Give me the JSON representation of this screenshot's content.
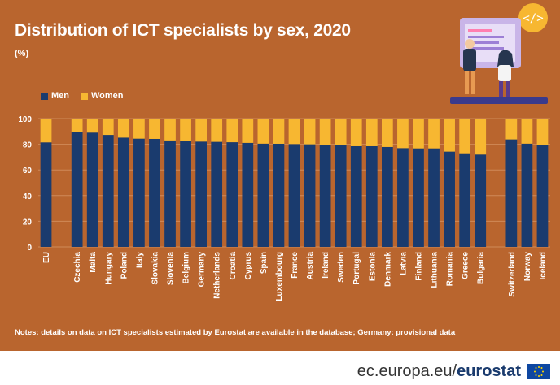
{
  "header": {
    "title": "Distribution of ICT specialists by sex, 2020",
    "unit": "(%)"
  },
  "legend": {
    "men": "Men",
    "women": "Women"
  },
  "notes": "Notes: details on data on ICT specialists estimated by Eurostat are available in the database; Germany: provisional data",
  "footer": {
    "site": "ec.europa.eu/",
    "brand": "eurostat"
  },
  "colors": {
    "men": "#1a3b6e",
    "women": "#f7b731",
    "background": "#b9652e"
  },
  "chart_data": {
    "type": "bar",
    "stacked": true,
    "categories": [
      "EU",
      "Czechia",
      "Malta",
      "Hungary",
      "Poland",
      "Italy",
      "Slovakia",
      "Slovenia",
      "Belgium",
      "Germany",
      "Netherlands",
      "Croatia",
      "Cyprus",
      "Spain",
      "Luxembourg",
      "France",
      "Austria",
      "Ireland",
      "Sweden",
      "Portugal",
      "Estonia",
      "Denmark",
      "Latvia",
      "Finland",
      "Lithuania",
      "Romania",
      "Greece",
      "Bulgaria",
      "Switzerland",
      "Norway",
      "Iceland"
    ],
    "groups": [
      1,
      27,
      3
    ],
    "series": [
      {
        "name": "Men",
        "values": [
          81.5,
          89.6,
          89.1,
          87.3,
          85.2,
          84.4,
          84.2,
          83.0,
          82.8,
          82.1,
          81.9,
          81.6,
          81.1,
          80.5,
          80.4,
          80.2,
          80.0,
          79.5,
          79.2,
          78.5,
          78.5,
          77.9,
          77.0,
          76.8,
          76.8,
          74.3,
          73.0,
          72.0,
          83.8,
          80.5,
          79.5
        ]
      },
      {
        "name": "Women",
        "values": [
          18.5,
          10.4,
          10.9,
          12.7,
          14.8,
          15.6,
          15.8,
          17.0,
          17.2,
          17.9,
          18.1,
          18.4,
          18.9,
          19.5,
          19.6,
          19.8,
          20.0,
          20.5,
          20.8,
          21.5,
          21.5,
          22.1,
          23.0,
          23.2,
          23.2,
          25.7,
          27.0,
          28.0,
          16.2,
          19.5,
          20.5
        ]
      }
    ],
    "ylim": [
      0,
      100
    ],
    "yticks": [
      0,
      20,
      40,
      60,
      80,
      100
    ],
    "grid": true,
    "legend_position": "top-left"
  }
}
